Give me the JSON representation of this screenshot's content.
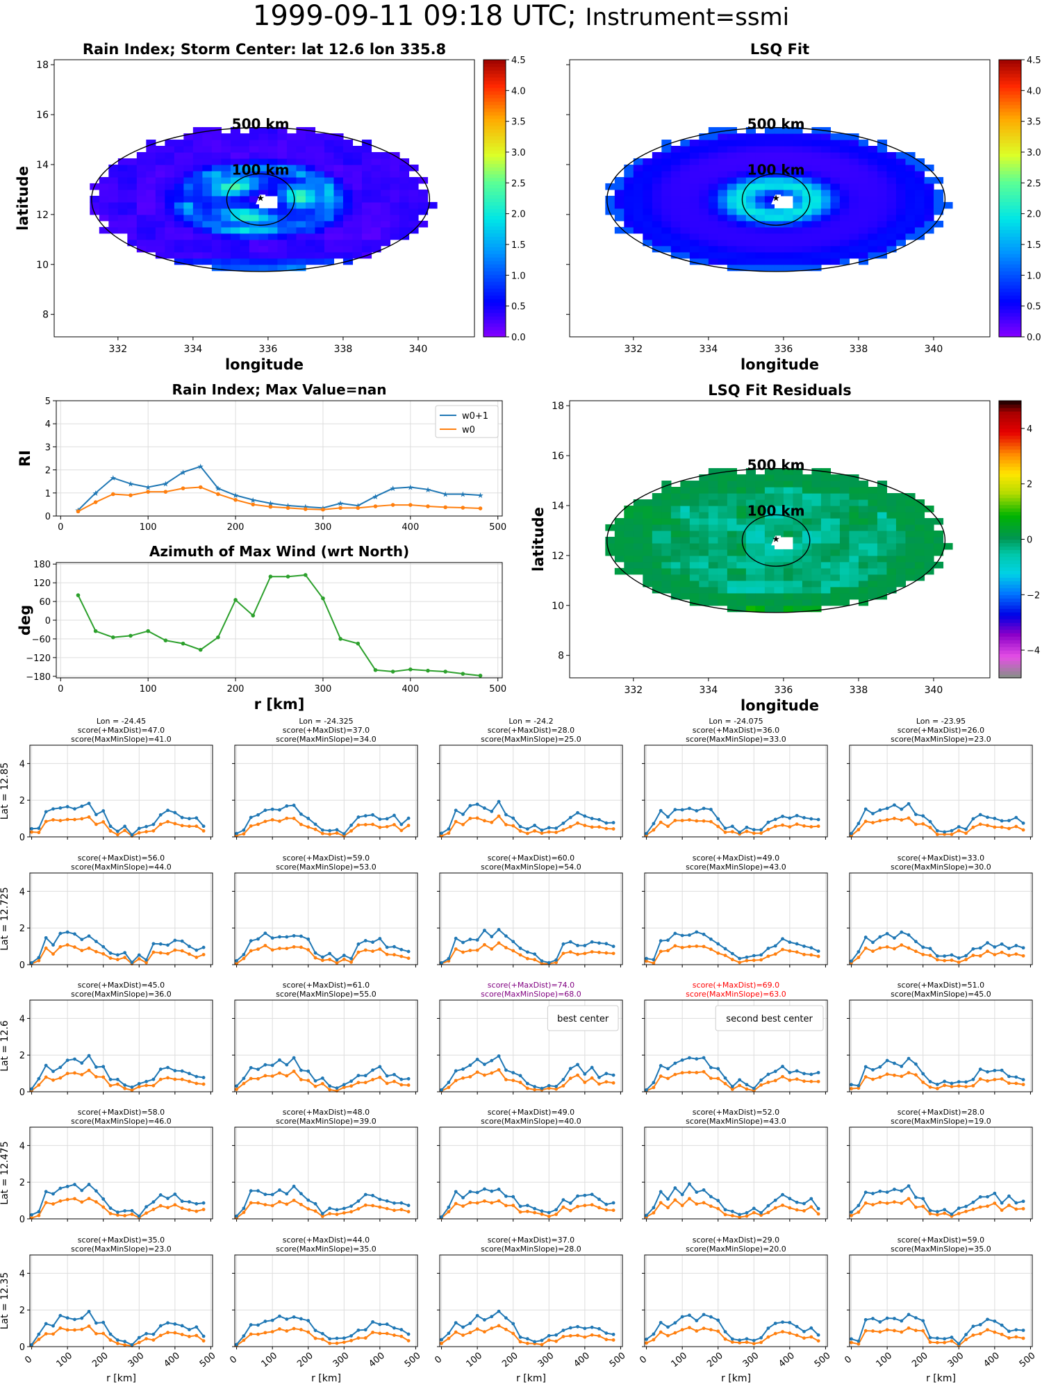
{
  "header": {
    "date": "1999-09-11 09:18 UTC;",
    "instrument": "Instrument=ssmi"
  },
  "colors": {
    "w0plus1": "#1f77b4",
    "w0": "#ff7f0e",
    "azimuth": "#2ca02c",
    "best": "#800080",
    "second": "#ff0000",
    "circle": "#000000"
  },
  "chart_data": [
    {
      "id": "rain-map",
      "type": "heatmap",
      "title": "Rain Index; Storm Center: lat 12.6 lon 335.8",
      "xlabel": "longitude",
      "ylabel": "latitude",
      "xlim": [
        330.3,
        341.5
      ],
      "ylim": [
        7.1,
        18.2
      ],
      "xticks": [
        "332",
        "334",
        "336",
        "338",
        "340"
      ],
      "yticks": [
        "8",
        "10",
        "12",
        "14",
        "16",
        "18"
      ],
      "colorbar": {
        "ticks": [
          "0.0",
          "0.5",
          "1.0",
          "1.5",
          "2.0",
          "2.5",
          "3.0",
          "3.5",
          "4.0",
          "4.5"
        ],
        "range": [
          0,
          4.5
        ],
        "colormap": "jet"
      },
      "circles": [
        {
          "label": "500 km",
          "radius_km": 500
        },
        {
          "label": "100 km",
          "radius_km": 100
        }
      ],
      "center": {
        "lat": 12.6,
        "lon": 335.8
      }
    },
    {
      "id": "lsq-map",
      "type": "heatmap",
      "title": "LSQ Fit",
      "xlabel": "longitude",
      "xlim": [
        330.3,
        341.5
      ],
      "ylim": [
        7.1,
        18.2
      ],
      "xticks": [
        "332",
        "334",
        "336",
        "338",
        "340"
      ],
      "colorbar": {
        "ticks": [
          "0.0",
          "0.5",
          "1.0",
          "1.5",
          "2.0",
          "2.5",
          "3.0",
          "3.5",
          "4.0",
          "4.5"
        ],
        "range": [
          0,
          4.5
        ],
        "colormap": "jet"
      },
      "circles": [
        {
          "label": "500 km",
          "radius_km": 500
        },
        {
          "label": "100 km",
          "radius_km": 100
        }
      ]
    },
    {
      "id": "residual-map",
      "type": "heatmap",
      "title": "LSQ Fit Residuals",
      "xlabel": "longitude",
      "ylabel": "latitude",
      "xlim": [
        330.3,
        341.5
      ],
      "ylim": [
        7.1,
        18.2
      ],
      "xticks": [
        "332",
        "334",
        "336",
        "338",
        "340"
      ],
      "yticks": [
        "8",
        "10",
        "12",
        "14",
        "16",
        "18"
      ],
      "colorbar": {
        "ticks": [
          "−4",
          "−2",
          "0",
          "2",
          "4"
        ],
        "range": [
          -5,
          5
        ],
        "colormap": "nipy_spectral_r"
      },
      "circles": [
        {
          "label": "500 km",
          "radius_km": 500
        },
        {
          "label": "100 km",
          "radius_km": 100
        }
      ]
    },
    {
      "id": "rain-index",
      "type": "line",
      "title": "Rain Index; Max Value=nan",
      "ylabel": "RI",
      "xlim": [
        -5,
        505
      ],
      "ylim": [
        0,
        5
      ],
      "xticks": [
        "0",
        "100",
        "200",
        "300",
        "400",
        "500"
      ],
      "yticks": [
        "0",
        "1",
        "2",
        "3",
        "4",
        "5"
      ],
      "x": [
        20,
        40,
        60,
        80,
        100,
        120,
        140,
        160,
        180,
        200,
        220,
        240,
        260,
        280,
        300,
        320,
        340,
        360,
        380,
        400,
        420,
        440,
        460,
        480
      ],
      "series": [
        {
          "name": "w0+1",
          "values": [
            0.25,
            1.0,
            1.65,
            1.4,
            1.25,
            1.4,
            1.9,
            2.15,
            1.2,
            0.9,
            0.7,
            0.55,
            0.45,
            0.4,
            0.35,
            0.55,
            0.45,
            0.85,
            1.2,
            1.25,
            1.15,
            0.95,
            0.95,
            0.9
          ]
        },
        {
          "name": "w0",
          "values": [
            0.2,
            0.6,
            0.95,
            0.9,
            1.05,
            1.05,
            1.2,
            1.25,
            0.95,
            0.7,
            0.5,
            0.4,
            0.35,
            0.3,
            0.28,
            0.35,
            0.35,
            0.42,
            0.48,
            0.48,
            0.42,
            0.38,
            0.36,
            0.33
          ]
        }
      ]
    },
    {
      "id": "azimuth",
      "type": "line",
      "title": "Azimuth of Max Wind (wrt North)",
      "xlabel": "r [km]",
      "ylabel": "deg",
      "xlim": [
        -5,
        505
      ],
      "ylim": [
        -185,
        185
      ],
      "xticks": [
        "0",
        "100",
        "200",
        "300",
        "400",
        "500"
      ],
      "yticks": [
        "180",
        "120",
        "60",
        "0",
        "−60",
        "−120",
        "−180"
      ],
      "x": [
        20,
        40,
        60,
        80,
        100,
        120,
        140,
        160,
        180,
        200,
        220,
        240,
        260,
        280,
        300,
        320,
        340,
        360,
        380,
        400,
        420,
        440,
        460,
        480
      ],
      "series": [
        {
          "values": [
            80,
            -35,
            -55,
            -50,
            -35,
            -65,
            -75,
            -95,
            -55,
            65,
            15,
            140,
            140,
            145,
            70,
            -60,
            -75,
            -160,
            -165,
            -158,
            -162,
            -165,
            -172,
            -178
          ]
        }
      ]
    },
    {
      "id": "small-multiples",
      "type": "line",
      "xlabel": "r [km]",
      "xlim": [
        -5,
        505
      ],
      "ylim": [
        0,
        5
      ],
      "xticks": [
        "0",
        "100",
        "200",
        "300",
        "400",
        "500"
      ],
      "yticks": [
        "0",
        "2",
        "4"
      ],
      "x": [
        0,
        20,
        40,
        60,
        80,
        100,
        120,
        140,
        160,
        180,
        200,
        220,
        240,
        260,
        280,
        300,
        320,
        340,
        360,
        380,
        400,
        420,
        440,
        460,
        480
      ],
      "row_labels": [
        "Lat = 12.85",
        "Lat = 12.725",
        "Lat = 12.6",
        "Lat = 12.475",
        "Lat = 12.35"
      ],
      "panels": [
        {
          "lon": "Lon = -24.45",
          "s1": "score(+MaxDist)=47.0",
          "s2": "score(MaxMinSlope)=41.0",
          "row": 0,
          "col": 0,
          "seed": 1
        },
        {
          "lon": "Lon = -24.325",
          "s1": "score(+MaxDist)=37.0",
          "s2": "score(MaxMinSlope)=34.0",
          "row": 0,
          "col": 1,
          "seed": 2
        },
        {
          "lon": "Lon = -24.2",
          "s1": "score(+MaxDist)=28.0",
          "s2": "score(MaxMinSlope)=25.0",
          "row": 0,
          "col": 2,
          "seed": 3
        },
        {
          "lon": "Lon = -24.075",
          "s1": "score(+MaxDist)=36.0",
          "s2": "score(MaxMinSlope)=33.0",
          "row": 0,
          "col": 3,
          "seed": 4
        },
        {
          "lon": "Lon = -23.95",
          "s1": "score(+MaxDist)=26.0",
          "s2": "score(MaxMinSlope)=23.0",
          "row": 0,
          "col": 4,
          "seed": 5
        },
        {
          "s1": "score(+MaxDist)=56.0",
          "s2": "score(MaxMinSlope)=44.0",
          "row": 1,
          "col": 0,
          "seed": 6
        },
        {
          "s1": "score(+MaxDist)=59.0",
          "s2": "score(MaxMinSlope)=53.0",
          "row": 1,
          "col": 1,
          "seed": 7
        },
        {
          "s1": "score(+MaxDist)=60.0",
          "s2": "score(MaxMinSlope)=54.0",
          "row": 1,
          "col": 2,
          "seed": 8
        },
        {
          "s1": "score(+MaxDist)=49.0",
          "s2": "score(MaxMinSlope)=43.0",
          "row": 1,
          "col": 3,
          "seed": 9
        },
        {
          "s1": "score(+MaxDist)=33.0",
          "s2": "score(MaxMinSlope)=30.0",
          "row": 1,
          "col": 4,
          "seed": 10
        },
        {
          "s1": "score(+MaxDist)=45.0",
          "s2": "score(MaxMinSlope)=36.0",
          "row": 2,
          "col": 0,
          "seed": 11
        },
        {
          "s1": "score(+MaxDist)=61.0",
          "s2": "score(MaxMinSlope)=55.0",
          "row": 2,
          "col": 1,
          "seed": 12
        },
        {
          "s1": "score(+MaxDist)=74.0",
          "s2": "score(MaxMinSlope)=68.0",
          "row": 2,
          "col": 2,
          "seed": 13,
          "color": "best",
          "legend": "best center"
        },
        {
          "s1": "score(+MaxDist)=69.0",
          "s2": "score(MaxMinSlope)=63.0",
          "row": 2,
          "col": 3,
          "seed": 14,
          "color": "second",
          "legend": "second best center"
        },
        {
          "s1": "score(+MaxDist)=51.0",
          "s2": "score(MaxMinSlope)=45.0",
          "row": 2,
          "col": 4,
          "seed": 15
        },
        {
          "s1": "score(+MaxDist)=58.0",
          "s2": "score(MaxMinSlope)=46.0",
          "row": 3,
          "col": 0,
          "seed": 16
        },
        {
          "s1": "score(+MaxDist)=48.0",
          "s2": "score(MaxMinSlope)=39.0",
          "row": 3,
          "col": 1,
          "seed": 17
        },
        {
          "s1": "score(+MaxDist)=49.0",
          "s2": "score(MaxMinSlope)=40.0",
          "row": 3,
          "col": 2,
          "seed": 18
        },
        {
          "s1": "score(+MaxDist)=52.0",
          "s2": "score(MaxMinSlope)=43.0",
          "row": 3,
          "col": 3,
          "seed": 19
        },
        {
          "s1": "score(+MaxDist)=28.0",
          "s2": "score(MaxMinSlope)=19.0",
          "row": 3,
          "col": 4,
          "seed": 20
        },
        {
          "s1": "score(+MaxDist)=35.0",
          "s2": "score(MaxMinSlope)=23.0",
          "row": 4,
          "col": 0,
          "seed": 21
        },
        {
          "s1": "score(+MaxDist)=44.0",
          "s2": "score(MaxMinSlope)=35.0",
          "row": 4,
          "col": 1,
          "seed": 22
        },
        {
          "s1": "score(+MaxDist)=37.0",
          "s2": "score(MaxMinSlope)=28.0",
          "row": 4,
          "col": 2,
          "seed": 23
        },
        {
          "s1": "score(+MaxDist)=29.0",
          "s2": "score(MaxMinSlope)=20.0",
          "row": 4,
          "col": 3,
          "seed": 24
        },
        {
          "s1": "score(+MaxDist)=59.0",
          "s2": "score(MaxMinSlope)=35.0",
          "row": 4,
          "col": 4,
          "seed": 25
        }
      ]
    }
  ]
}
